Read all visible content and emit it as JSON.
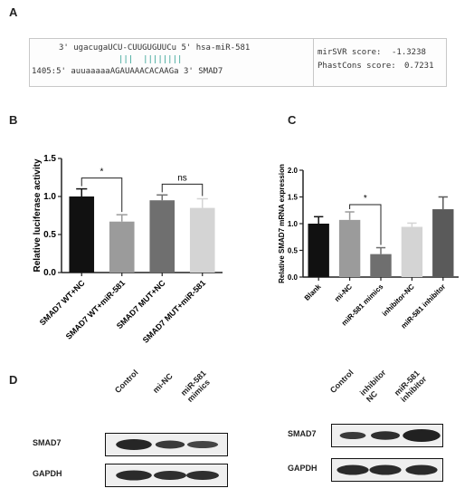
{
  "panel_labels": {
    "a": "A",
    "b": "B",
    "c": "C",
    "d": "D"
  },
  "panel_a": {
    "line1": "3' ugacugaUCU-CUUGUGUUCu 5' hsa-miR-581",
    "pairs": "|||  ||||||||",
    "line3": "1405:5' auuaaaaaAGAUAAACACAAGa 3' SMAD7",
    "mirsvr_label": "mirSVR score:",
    "mirsvr_value": "-1.3238",
    "phastcons_label": "PhastCons score:",
    "phastcons_value": "0.7231"
  },
  "chart_data": [
    {
      "type": "bar",
      "title": "",
      "xlabel": "",
      "ylabel": "Relative luciferase activity",
      "ylim": [
        0.0,
        1.5
      ],
      "yticks": [
        "0.0",
        "0.5",
        "1.0",
        "1.5"
      ],
      "categories": [
        "SMAD7 WT+NC",
        "SMAD7 WT+miR-581",
        "SMAD7 MUT+NC",
        "SMAD7 MUT+miR-581"
      ],
      "values": [
        1.0,
        0.67,
        0.95,
        0.85
      ],
      "errors": [
        0.1,
        0.09,
        0.07,
        0.12
      ],
      "colors": [
        "#111111",
        "#9b9b9b",
        "#6f6f6f",
        "#d4d4d4"
      ],
      "significance": [
        {
          "from": 0,
          "to": 1,
          "label": "*"
        },
        {
          "from": 2,
          "to": 3,
          "label": "ns"
        }
      ]
    },
    {
      "type": "bar",
      "title": "",
      "xlabel": "",
      "ylabel": "Relative SMAD7 mRNA expression",
      "ylim": [
        0.0,
        2.0
      ],
      "yticks": [
        "0.0",
        "0.5",
        "1.0",
        "1.5",
        "2.0"
      ],
      "categories": [
        "Blank",
        "mi-NC",
        "miR-581 mimics",
        "inhibitor-NC",
        "miR-581 inhibitor"
      ],
      "values": [
        1.0,
        1.07,
        0.43,
        0.94,
        1.27
      ],
      "errors": [
        0.13,
        0.15,
        0.12,
        0.07,
        0.23
      ],
      "colors": [
        "#111111",
        "#9b9b9b",
        "#6f6f6f",
        "#d4d4d4",
        "#5a5a5a"
      ],
      "significance": [
        {
          "from": 1,
          "to": 2,
          "label": "*"
        }
      ]
    }
  ],
  "panel_d": {
    "left": {
      "lanes": [
        "Control",
        "mi-NC",
        "miR-581\nmimics"
      ],
      "rows": [
        "SMAD7",
        "GAPDH"
      ]
    },
    "right": {
      "lanes": [
        "Control",
        "inhibitor\nNC",
        "miR-581\ninhibitor"
      ],
      "rows": [
        "SMAD7",
        "GAPDH"
      ]
    }
  }
}
